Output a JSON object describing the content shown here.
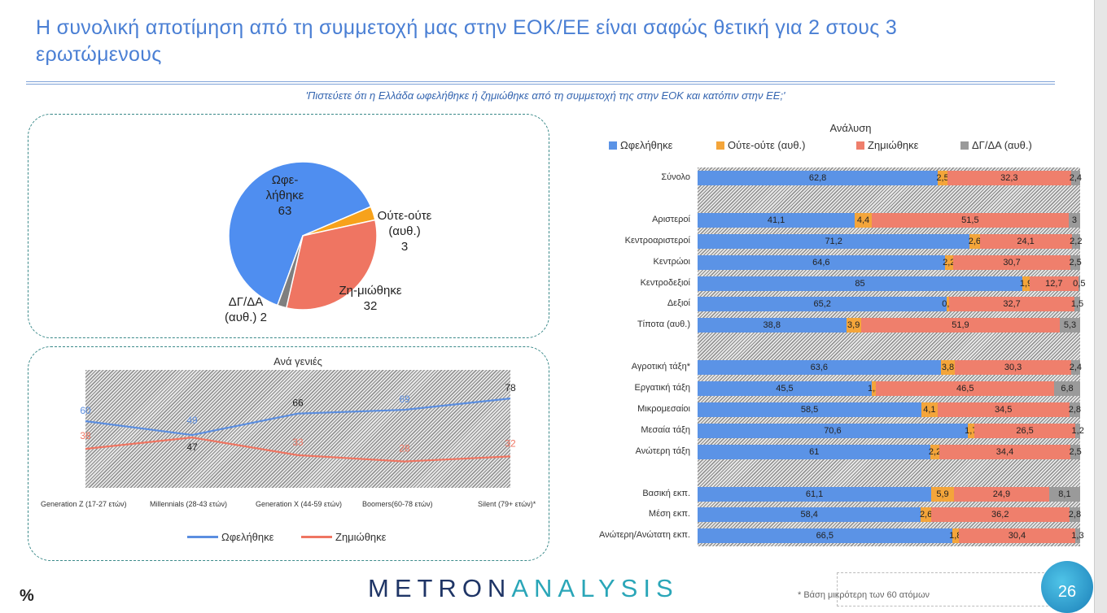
{
  "header": {
    "title": "Η συνολική αποτίμηση από τη συμμετοχή μας στην ΕΟΚ/ΕΕ είναι σαφώς θετική για 2 στους 3 ερωτώμενους",
    "question": "'Πιστεύετε ότι η Ελλάδα ωφελήθηκε ή ζημιώθηκε από τη συμμετοχή της στην ΕΟΚ και κατόπιν στην ΕΕ;'"
  },
  "colors": {
    "benefited": "#5b93e6",
    "neither": "#f4a53a",
    "harmed": "#ef7f6c",
    "dk": "#9a9a9a",
    "title": "#4a7fd4"
  },
  "chart_data": [
    {
      "type": "pie",
      "slices": [
        {
          "label": "Ωφε-λήθηκε",
          "value": 63,
          "color": "#4f8ef0"
        },
        {
          "label": "Ούτε-ούτε (αυθ.)",
          "value": 3,
          "color": "#f7a21b"
        },
        {
          "label": "Ζη-μιώθηκε",
          "value": 32,
          "color": "#ef7562"
        },
        {
          "label": "ΔΓ/ΔΑ (αυθ.)",
          "value": 2,
          "color": "#7f7f7f"
        }
      ]
    },
    {
      "type": "line",
      "title": "Ανά γενιές",
      "categories": [
        "Generation Z (17-27 ετών)",
        "Millennials (28-43 ετών)",
        "Generation X (44-59 ετών)",
        "Boomers(60-78 ετών)",
        "Silent (79+ ετών)*"
      ],
      "series": [
        {
          "name": "Ωφελήθηκε",
          "values": [
            60,
            49,
            66,
            69,
            78
          ],
          "color": "#5b8ee0"
        },
        {
          "name": "Ζημιώθηκε",
          "values": [
            38,
            47,
            33,
            28,
            32
          ],
          "color": "#ef7562"
        }
      ]
    },
    {
      "type": "bar",
      "stacked": true,
      "orientation": "horizontal",
      "title": "Ανάλυση",
      "xlim": [
        0,
        100
      ],
      "series_names": [
        "Ωφελήθηκε",
        "Ούτε-ούτε (αυθ.)",
        "Ζημιώθηκε",
        "ΔΓ/ΔΑ (αυθ.)"
      ],
      "rows": [
        {
          "label": "Σύνολο",
          "values": [
            "62,8",
            "2,5",
            "32,3",
            "2,4"
          ]
        },
        {
          "label": "",
          "values": null
        },
        {
          "label": "Αριστεροί",
          "values": [
            "41,1",
            "4,4",
            "51,5",
            "3"
          ]
        },
        {
          "label": "Κεντροαριστεροί",
          "values": [
            "71,2",
            "2,6",
            "24,1",
            "2,2"
          ]
        },
        {
          "label": "Κεντρώοι",
          "values": [
            "64,6",
            "2,2",
            "30,7",
            "2,5"
          ]
        },
        {
          "label": "Κεντροδεξιοί",
          "values": [
            "85",
            "1,9",
            "12,7",
            "0,5"
          ]
        },
        {
          "label": "Δεξιοί",
          "values": [
            "65,2",
            "0,6",
            "32,7",
            "1,5"
          ]
        },
        {
          "label": "Τίποτα (αυθ.)",
          "values": [
            "38,8",
            "3,9",
            "51,9",
            "5,3"
          ]
        },
        {
          "label": "",
          "values": null
        },
        {
          "label": "Αγροτική τάξη*",
          "values": [
            "63,6",
            "3,8",
            "30,3",
            "2,4"
          ]
        },
        {
          "label": "Εργατική τάξη",
          "values": [
            "45,5",
            "1,2",
            "46,5",
            "6,8"
          ]
        },
        {
          "label": "Μικρομεσαίοι",
          "values": [
            "58,5",
            "4,1",
            "34,5",
            "2,8"
          ]
        },
        {
          "label": "Μεσαία τάξη",
          "values": [
            "70,6",
            "1,7",
            "26,5",
            "1,2"
          ]
        },
        {
          "label": "Ανώτερη τάξη",
          "values": [
            "61",
            "2,2",
            "34,4",
            "2,5"
          ]
        },
        {
          "label": "",
          "values": null
        },
        {
          "label": "Βασική εκπ.",
          "values": [
            "61,1",
            "5,9",
            "24,9",
            "8,1"
          ]
        },
        {
          "label": "Μέση εκπ.",
          "values": [
            "58,4",
            "2,6",
            "36,2",
            "2,8"
          ]
        },
        {
          "label": "Ανώτερη/Ανώτατη εκπ.",
          "values": [
            "66,5",
            "1,8",
            "30,4",
            "1,3"
          ]
        }
      ]
    }
  ],
  "footer": {
    "percent": "%",
    "logo": "METRONANALYSIS",
    "note": "*  Βάση μικρότερη των 60 ατόμων",
    "page": "26"
  }
}
